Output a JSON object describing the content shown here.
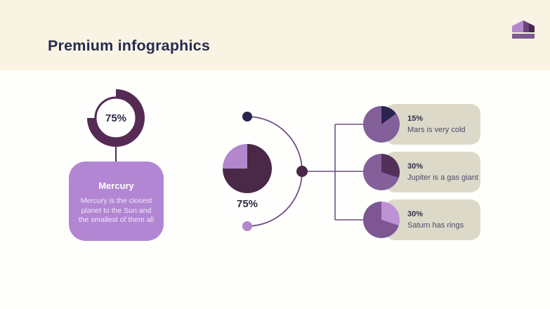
{
  "header": {
    "title": "Premium infographics"
  },
  "colors": {
    "header_band": "#f8f3e3",
    "title_text": "#262b4e",
    "donut_ring": "#552a54",
    "connector": "#6e4f80",
    "mercury_card_bg": "#b286d2",
    "satellite_card_bg": "#ddd9c8",
    "dot_top": "#27254e",
    "dot_middle": "#4a2548",
    "dot_bottom": "#b287cd"
  },
  "donut": {
    "label": "75%",
    "percent": 75,
    "ring_color": "#552a54"
  },
  "mercury": {
    "title": "Mercury",
    "description": "Mercury is the closest planet to the Sun and the smallest of them all"
  },
  "main_pie": {
    "label": "75%",
    "percent": 75,
    "segments": [
      {
        "color": "#4a2848",
        "from": 0,
        "to": 75
      },
      {
        "color": "#b287cd",
        "from": 75,
        "to": 100
      }
    ]
  },
  "satellites": [
    {
      "pct": "15%",
      "percent": 15,
      "caption": "Mars is very cold",
      "segments": [
        {
          "color": "#2a2550",
          "from": 0,
          "to": 15
        },
        {
          "color": "#84609b",
          "from": 15,
          "to": 100
        }
      ]
    },
    {
      "pct": "30%",
      "percent": 30,
      "caption": "Jupiter is a gas giant",
      "segments": [
        {
          "color": "#533058",
          "from": 0,
          "to": 30
        },
        {
          "color": "#84609b",
          "from": 30,
          "to": 100
        }
      ]
    },
    {
      "pct": "30%",
      "percent": 30,
      "caption": "Saturn has rings",
      "segments": [
        {
          "color": "#bd93d6",
          "from": 0,
          "to": 30
        },
        {
          "color": "#7d5692",
          "from": 30,
          "to": 100
        }
      ]
    }
  ]
}
